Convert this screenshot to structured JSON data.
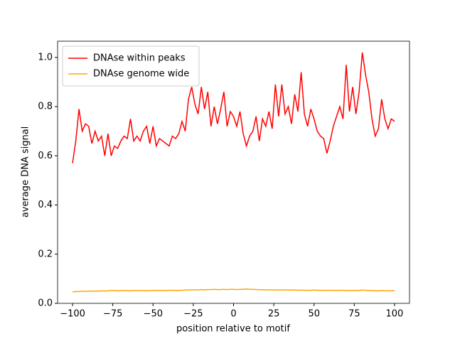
{
  "chart_data": {
    "type": "line",
    "xlabel": "position relative to motif",
    "ylabel": "average DNA signal",
    "xlim": [
      -109.3,
      109.3
    ],
    "ylim": [
      0,
      1.066
    ],
    "xticks": [
      {
        "value": -100,
        "label": "−100"
      },
      {
        "value": -75,
        "label": "−75"
      },
      {
        "value": -50,
        "label": "−50"
      },
      {
        "value": -25,
        "label": "−25"
      },
      0,
      25,
      50,
      75,
      100
    ],
    "yticks": [
      {
        "value": 0,
        "label": "0.0"
      },
      0.2,
      0.4,
      0.6,
      0.8,
      {
        "value": 1,
        "label": "1.0"
      }
    ],
    "legend": "upper left",
    "grid": false,
    "x": [
      -100,
      -98,
      -96,
      -94,
      -92,
      -90,
      -88,
      -86,
      -84,
      -82,
      -80,
      -78,
      -76,
      -74,
      -72,
      -70,
      -68,
      -66,
      -64,
      -62,
      -60,
      -58,
      -56,
      -54,
      -52,
      -50,
      -48,
      -46,
      -44,
      -42,
      -40,
      -38,
      -36,
      -34,
      -32,
      -30,
      -28,
      -26,
      -24,
      -22,
      -20,
      -18,
      -16,
      -14,
      -12,
      -10,
      -8,
      -6,
      -4,
      -2,
      0,
      2,
      4,
      6,
      8,
      10,
      12,
      14,
      16,
      18,
      20,
      22,
      24,
      26,
      28,
      30,
      32,
      34,
      36,
      38,
      40,
      42,
      44,
      46,
      48,
      50,
      52,
      54,
      56,
      58,
      60,
      62,
      64,
      66,
      68,
      70,
      72,
      74,
      76,
      78,
      80,
      82,
      84,
      86,
      88,
      90,
      92,
      94,
      96,
      98,
      100
    ],
    "series": [
      {
        "name": "DNAse within peaks",
        "color": "#ff0000",
        "values": [
          0.57,
          0.66,
          0.79,
          0.7,
          0.73,
          0.72,
          0.65,
          0.7,
          0.66,
          0.68,
          0.6,
          0.69,
          0.6,
          0.64,
          0.63,
          0.66,
          0.68,
          0.67,
          0.75,
          0.66,
          0.68,
          0.66,
          0.7,
          0.72,
          0.65,
          0.72,
          0.64,
          0.67,
          0.66,
          0.65,
          0.64,
          0.68,
          0.67,
          0.69,
          0.74,
          0.7,
          0.83,
          0.88,
          0.81,
          0.77,
          0.88,
          0.79,
          0.86,
          0.72,
          0.8,
          0.73,
          0.79,
          0.86,
          0.72,
          0.78,
          0.76,
          0.72,
          0.78,
          0.69,
          0.64,
          0.68,
          0.7,
          0.76,
          0.66,
          0.75,
          0.72,
          0.78,
          0.71,
          0.89,
          0.76,
          0.89,
          0.77,
          0.8,
          0.73,
          0.85,
          0.78,
          0.94,
          0.77,
          0.72,
          0.79,
          0.75,
          0.7,
          0.68,
          0.67,
          0.61,
          0.66,
          0.72,
          0.76,
          0.8,
          0.75,
          0.97,
          0.78,
          0.88,
          0.77,
          0.86,
          1.02,
          0.93,
          0.86,
          0.75,
          0.68,
          0.71,
          0.83,
          0.75,
          0.71,
          0.75,
          0.74
        ]
      },
      {
        "name": "DNAse genome wide",
        "color": "#ffa500",
        "values": [
          0.047,
          0.048,
          0.048,
          0.049,
          0.049,
          0.049,
          0.05,
          0.05,
          0.05,
          0.051,
          0.05,
          0.051,
          0.052,
          0.052,
          0.051,
          0.052,
          0.052,
          0.052,
          0.051,
          0.052,
          0.052,
          0.052,
          0.052,
          0.051,
          0.052,
          0.052,
          0.052,
          0.053,
          0.052,
          0.052,
          0.053,
          0.053,
          0.052,
          0.053,
          0.053,
          0.054,
          0.054,
          0.055,
          0.055,
          0.055,
          0.056,
          0.055,
          0.056,
          0.056,
          0.057,
          0.056,
          0.056,
          0.057,
          0.056,
          0.057,
          0.057,
          0.056,
          0.057,
          0.057,
          0.058,
          0.057,
          0.057,
          0.056,
          0.056,
          0.055,
          0.055,
          0.055,
          0.054,
          0.055,
          0.054,
          0.054,
          0.055,
          0.054,
          0.054,
          0.054,
          0.053,
          0.054,
          0.053,
          0.053,
          0.053,
          0.054,
          0.053,
          0.053,
          0.053,
          0.053,
          0.053,
          0.053,
          0.052,
          0.053,
          0.053,
          0.052,
          0.052,
          0.053,
          0.052,
          0.052,
          0.054,
          0.053,
          0.052,
          0.052,
          0.051,
          0.051,
          0.052,
          0.051,
          0.051,
          0.051,
          0.052
        ]
      }
    ]
  }
}
